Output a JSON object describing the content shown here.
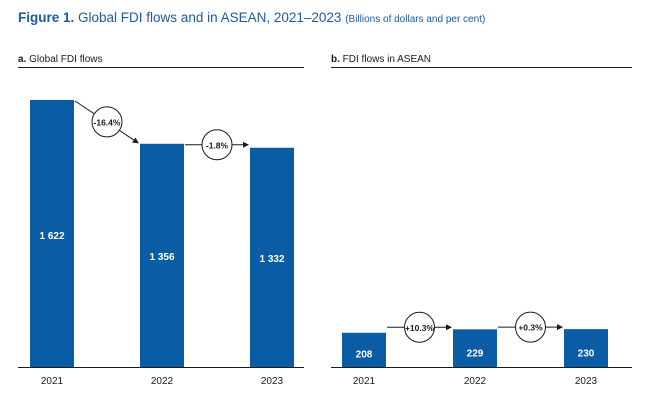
{
  "figure": {
    "label": "Figure 1.",
    "title": "Global FDI flows and in ASEAN, 2021–2023",
    "subtitle": "(Billions of dollars and per cent)"
  },
  "colors": {
    "bar": "#0a5ca5",
    "title": "#1f5aa6"
  },
  "chart_data": [
    {
      "type": "bar",
      "panel_letter": "a.",
      "title": "Global FDI flows",
      "categories": [
        "2021",
        "2022",
        "2023"
      ],
      "values": [
        1622,
        1356,
        1332
      ],
      "value_labels": [
        "1 622",
        "1 356",
        "1 332"
      ],
      "changes": [
        "-16.4%",
        "-1.8%"
      ]
    },
    {
      "type": "bar",
      "panel_letter": "b.",
      "title": "FDI flows in ASEAN",
      "categories": [
        "2021",
        "2022",
        "2023"
      ],
      "values": [
        208,
        229,
        230
      ],
      "value_labels": [
        "208",
        "229",
        "230"
      ],
      "changes": [
        "+10.3%",
        "+0.3%"
      ]
    }
  ]
}
